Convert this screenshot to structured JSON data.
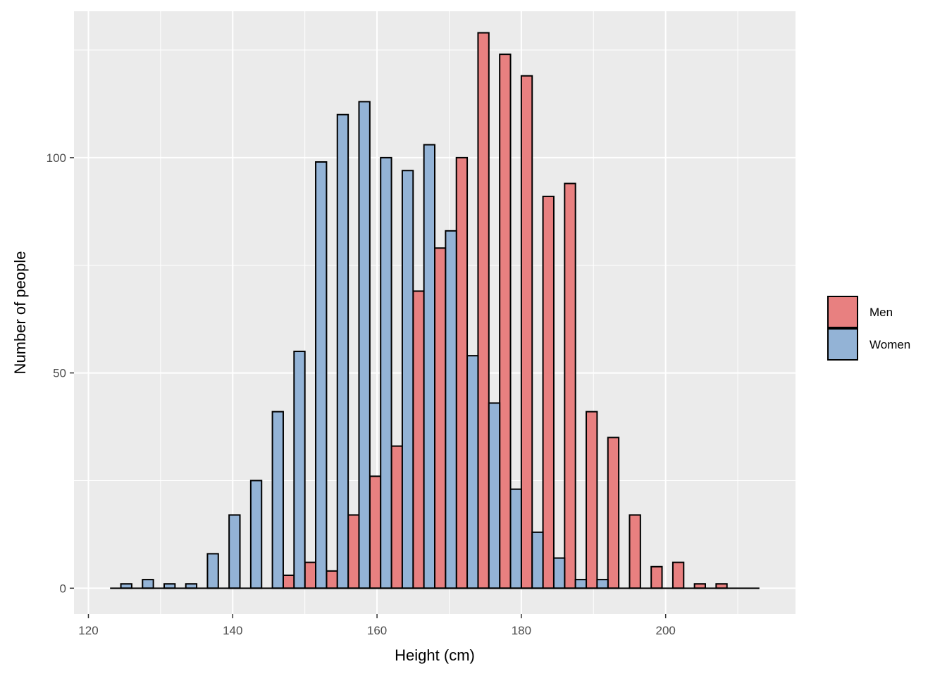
{
  "chart_data": {
    "type": "bar",
    "subtype": "dodged-histogram",
    "title": "",
    "xlabel": "Height (cm)",
    "ylabel": "Number of people",
    "xlim": [
      118,
      218
    ],
    "ylim": [
      -6,
      134
    ],
    "xticks": [
      120,
      140,
      160,
      180,
      200
    ],
    "yticks": [
      0,
      50,
      100
    ],
    "grid": true,
    "background": "#ebebeb",
    "legend_position": "right",
    "bin_width": 3,
    "bin_centers": [
      124.5,
      127.5,
      130.5,
      133.5,
      136.5,
      139.5,
      142.5,
      145.5,
      148.5,
      151.5,
      154.5,
      157.5,
      160.5,
      163.5,
      166.5,
      169.5,
      172.5,
      175.5,
      178.5,
      181.5,
      184.5,
      187.5,
      190.5,
      193.5,
      196.5,
      199.5,
      202.5,
      205.5,
      208.5,
      211.5
    ],
    "series": [
      {
        "name": "Men",
        "color": "#e88080",
        "values": [
          0,
          0,
          0,
          0,
          0,
          0,
          0,
          0,
          3,
          6,
          4,
          17,
          26,
          33,
          69,
          79,
          100,
          129,
          124,
          119,
          91,
          94,
          41,
          35,
          17,
          5,
          6,
          1,
          1,
          0
        ]
      },
      {
        "name": "Women",
        "color": "#93b3d6",
        "values": [
          1,
          2,
          1,
          1,
          8,
          17,
          25,
          41,
          55,
          99,
          110,
          113,
          100,
          97,
          103,
          83,
          54,
          43,
          23,
          13,
          7,
          2,
          2,
          0,
          0,
          0,
          0,
          0,
          0,
          0
        ]
      }
    ]
  }
}
